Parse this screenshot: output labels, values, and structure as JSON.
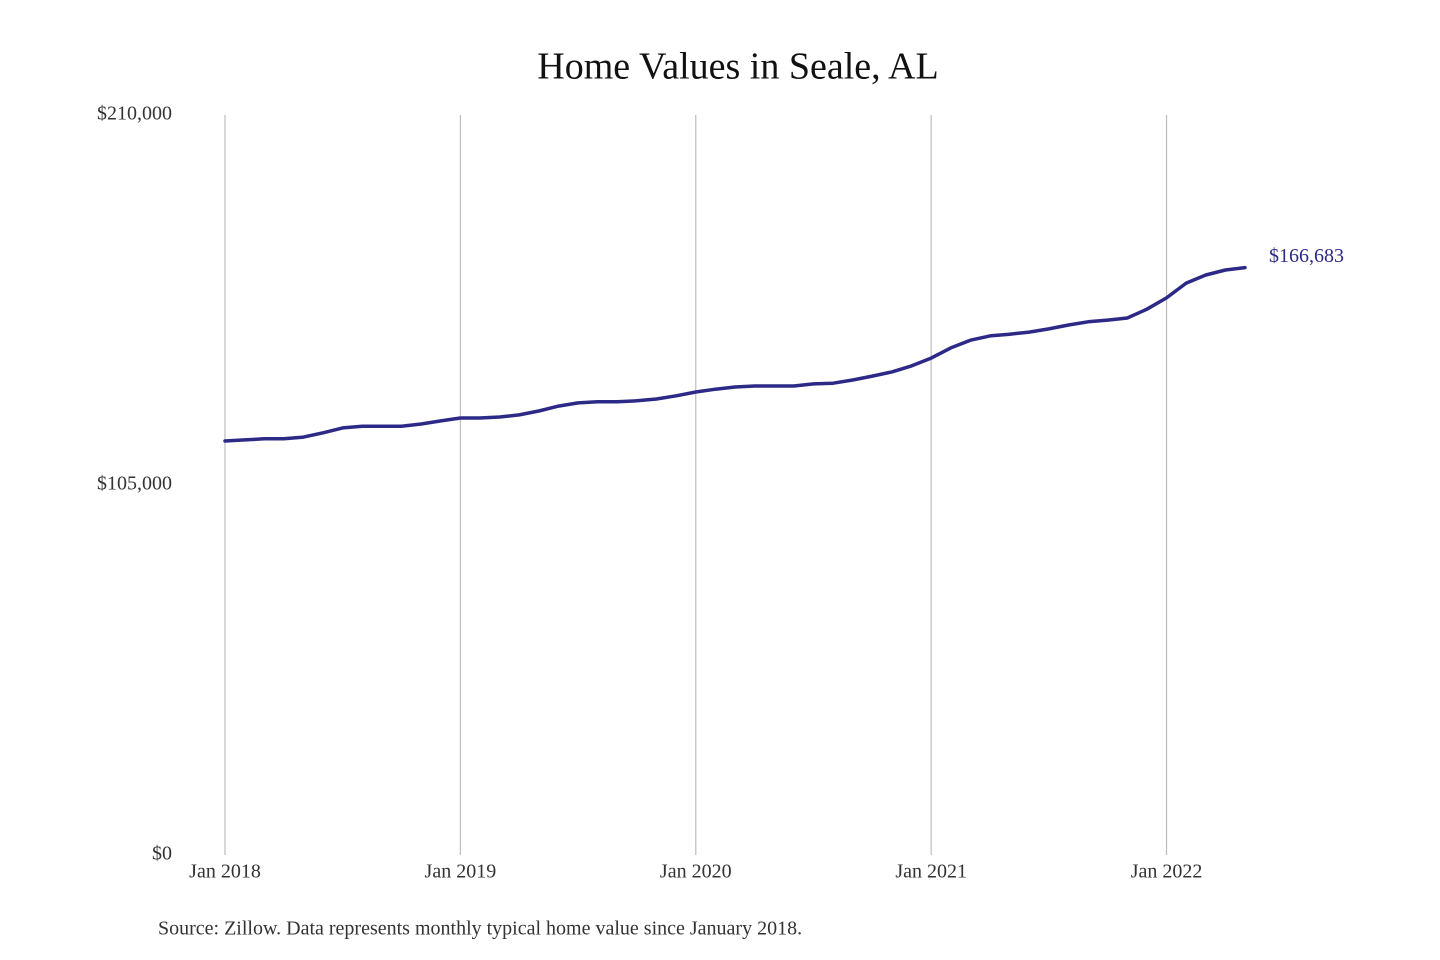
{
  "chart_data": {
    "type": "line",
    "title": "Home Values in Seale, AL",
    "source": "Source: Zillow. Data represents monthly typical home value since January 2018.",
    "x": [
      "2018-01",
      "2018-02",
      "2018-03",
      "2018-04",
      "2018-05",
      "2018-06",
      "2018-07",
      "2018-08",
      "2018-09",
      "2018-10",
      "2018-11",
      "2018-12",
      "2019-01",
      "2019-02",
      "2019-03",
      "2019-04",
      "2019-05",
      "2019-06",
      "2019-07",
      "2019-08",
      "2019-09",
      "2019-10",
      "2019-11",
      "2019-12",
      "2020-01",
      "2020-02",
      "2020-03",
      "2020-04",
      "2020-05",
      "2020-06",
      "2020-07",
      "2020-08",
      "2020-09",
      "2020-10",
      "2020-11",
      "2020-12",
      "2021-01",
      "2021-02",
      "2021-03",
      "2021-04",
      "2021-05",
      "2021-06",
      "2021-07",
      "2021-08",
      "2021-09",
      "2021-10",
      "2021-11",
      "2021-12",
      "2022-01",
      "2022-02",
      "2022-03",
      "2022-04",
      "2022-05"
    ],
    "series": [
      {
        "name": "Typical home value",
        "color": "#2d2a87",
        "values": [
          117500,
          117800,
          118100,
          118100,
          118600,
          119800,
          121200,
          121700,
          121700,
          121700,
          122300,
          123200,
          124000,
          124000,
          124300,
          124900,
          126000,
          127400,
          128300,
          128600,
          128600,
          128900,
          129400,
          130300,
          131400,
          132200,
          132800,
          133100,
          133100,
          133100,
          133700,
          133900,
          134800,
          135900,
          137100,
          138800,
          141000,
          143900,
          146100,
          147300,
          147800,
          148400,
          149300,
          150400,
          151300,
          151800,
          152400,
          154900,
          158100,
          162300,
          164600,
          166000,
          166683
        ],
        "value_labels": [
          null,
          null,
          null,
          null,
          null,
          null,
          null,
          null,
          null,
          null,
          null,
          null,
          null,
          null,
          null,
          null,
          null,
          null,
          null,
          null,
          null,
          null,
          null,
          null,
          null,
          null,
          null,
          null,
          null,
          null,
          null,
          null,
          null,
          null,
          null,
          null,
          null,
          null,
          null,
          null,
          null,
          null,
          null,
          null,
          null,
          null,
          null,
          null,
          null,
          null,
          null,
          null,
          "$166,683"
        ]
      }
    ],
    "xlim": [
      "2018-01",
      "2022-05"
    ],
    "xticks": [
      {
        "value": "2018-01",
        "label": "Jan 2018"
      },
      {
        "value": "2019-01",
        "label": "Jan 2019"
      },
      {
        "value": "2020-01",
        "label": "Jan 2020"
      },
      {
        "value": "2021-01",
        "label": "Jan 2021"
      },
      {
        "value": "2022-01",
        "label": "Jan 2022"
      }
    ],
    "ylim": [
      0,
      210000
    ],
    "yticks": [
      {
        "value": 0,
        "label": "$0"
      },
      {
        "value": 105000,
        "label": "$105,000"
      },
      {
        "value": 210000,
        "label": "$210,000"
      }
    ],
    "grid": "x"
  }
}
